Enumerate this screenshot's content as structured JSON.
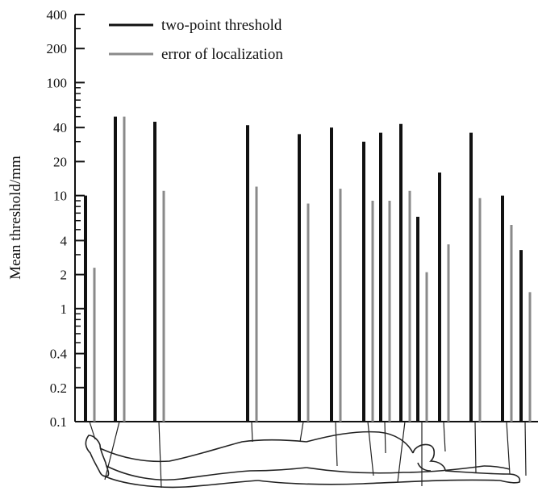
{
  "chart_data": {
    "type": "bar",
    "ylabel": "Mean threshold/mm",
    "yscale": "log",
    "ylim": [
      0.1,
      400
    ],
    "yticks": [
      "0.1",
      "0.2",
      "0.4",
      "1",
      "2",
      "4",
      "10",
      "20",
      "40",
      "100",
      "200",
      "400"
    ],
    "legend_position": "top-left",
    "series": [
      {
        "name": "two-point threshold",
        "color": "#111111",
        "values": [
          10,
          50,
          45,
          42,
          35,
          40,
          30,
          36,
          43,
          6.5,
          16,
          36,
          10,
          3.3
        ]
      },
      {
        "name": "error of localization",
        "color": "#8a8a8a",
        "values": [
          2.3,
          50,
          11,
          12,
          8.5,
          11.5,
          9,
          9,
          11,
          2.1,
          3.7,
          9.5,
          5.5,
          1.4
        ]
      }
    ],
    "grid": false,
    "body_outline": "reclining human figure with lines linking each bar pair to a body location"
  }
}
